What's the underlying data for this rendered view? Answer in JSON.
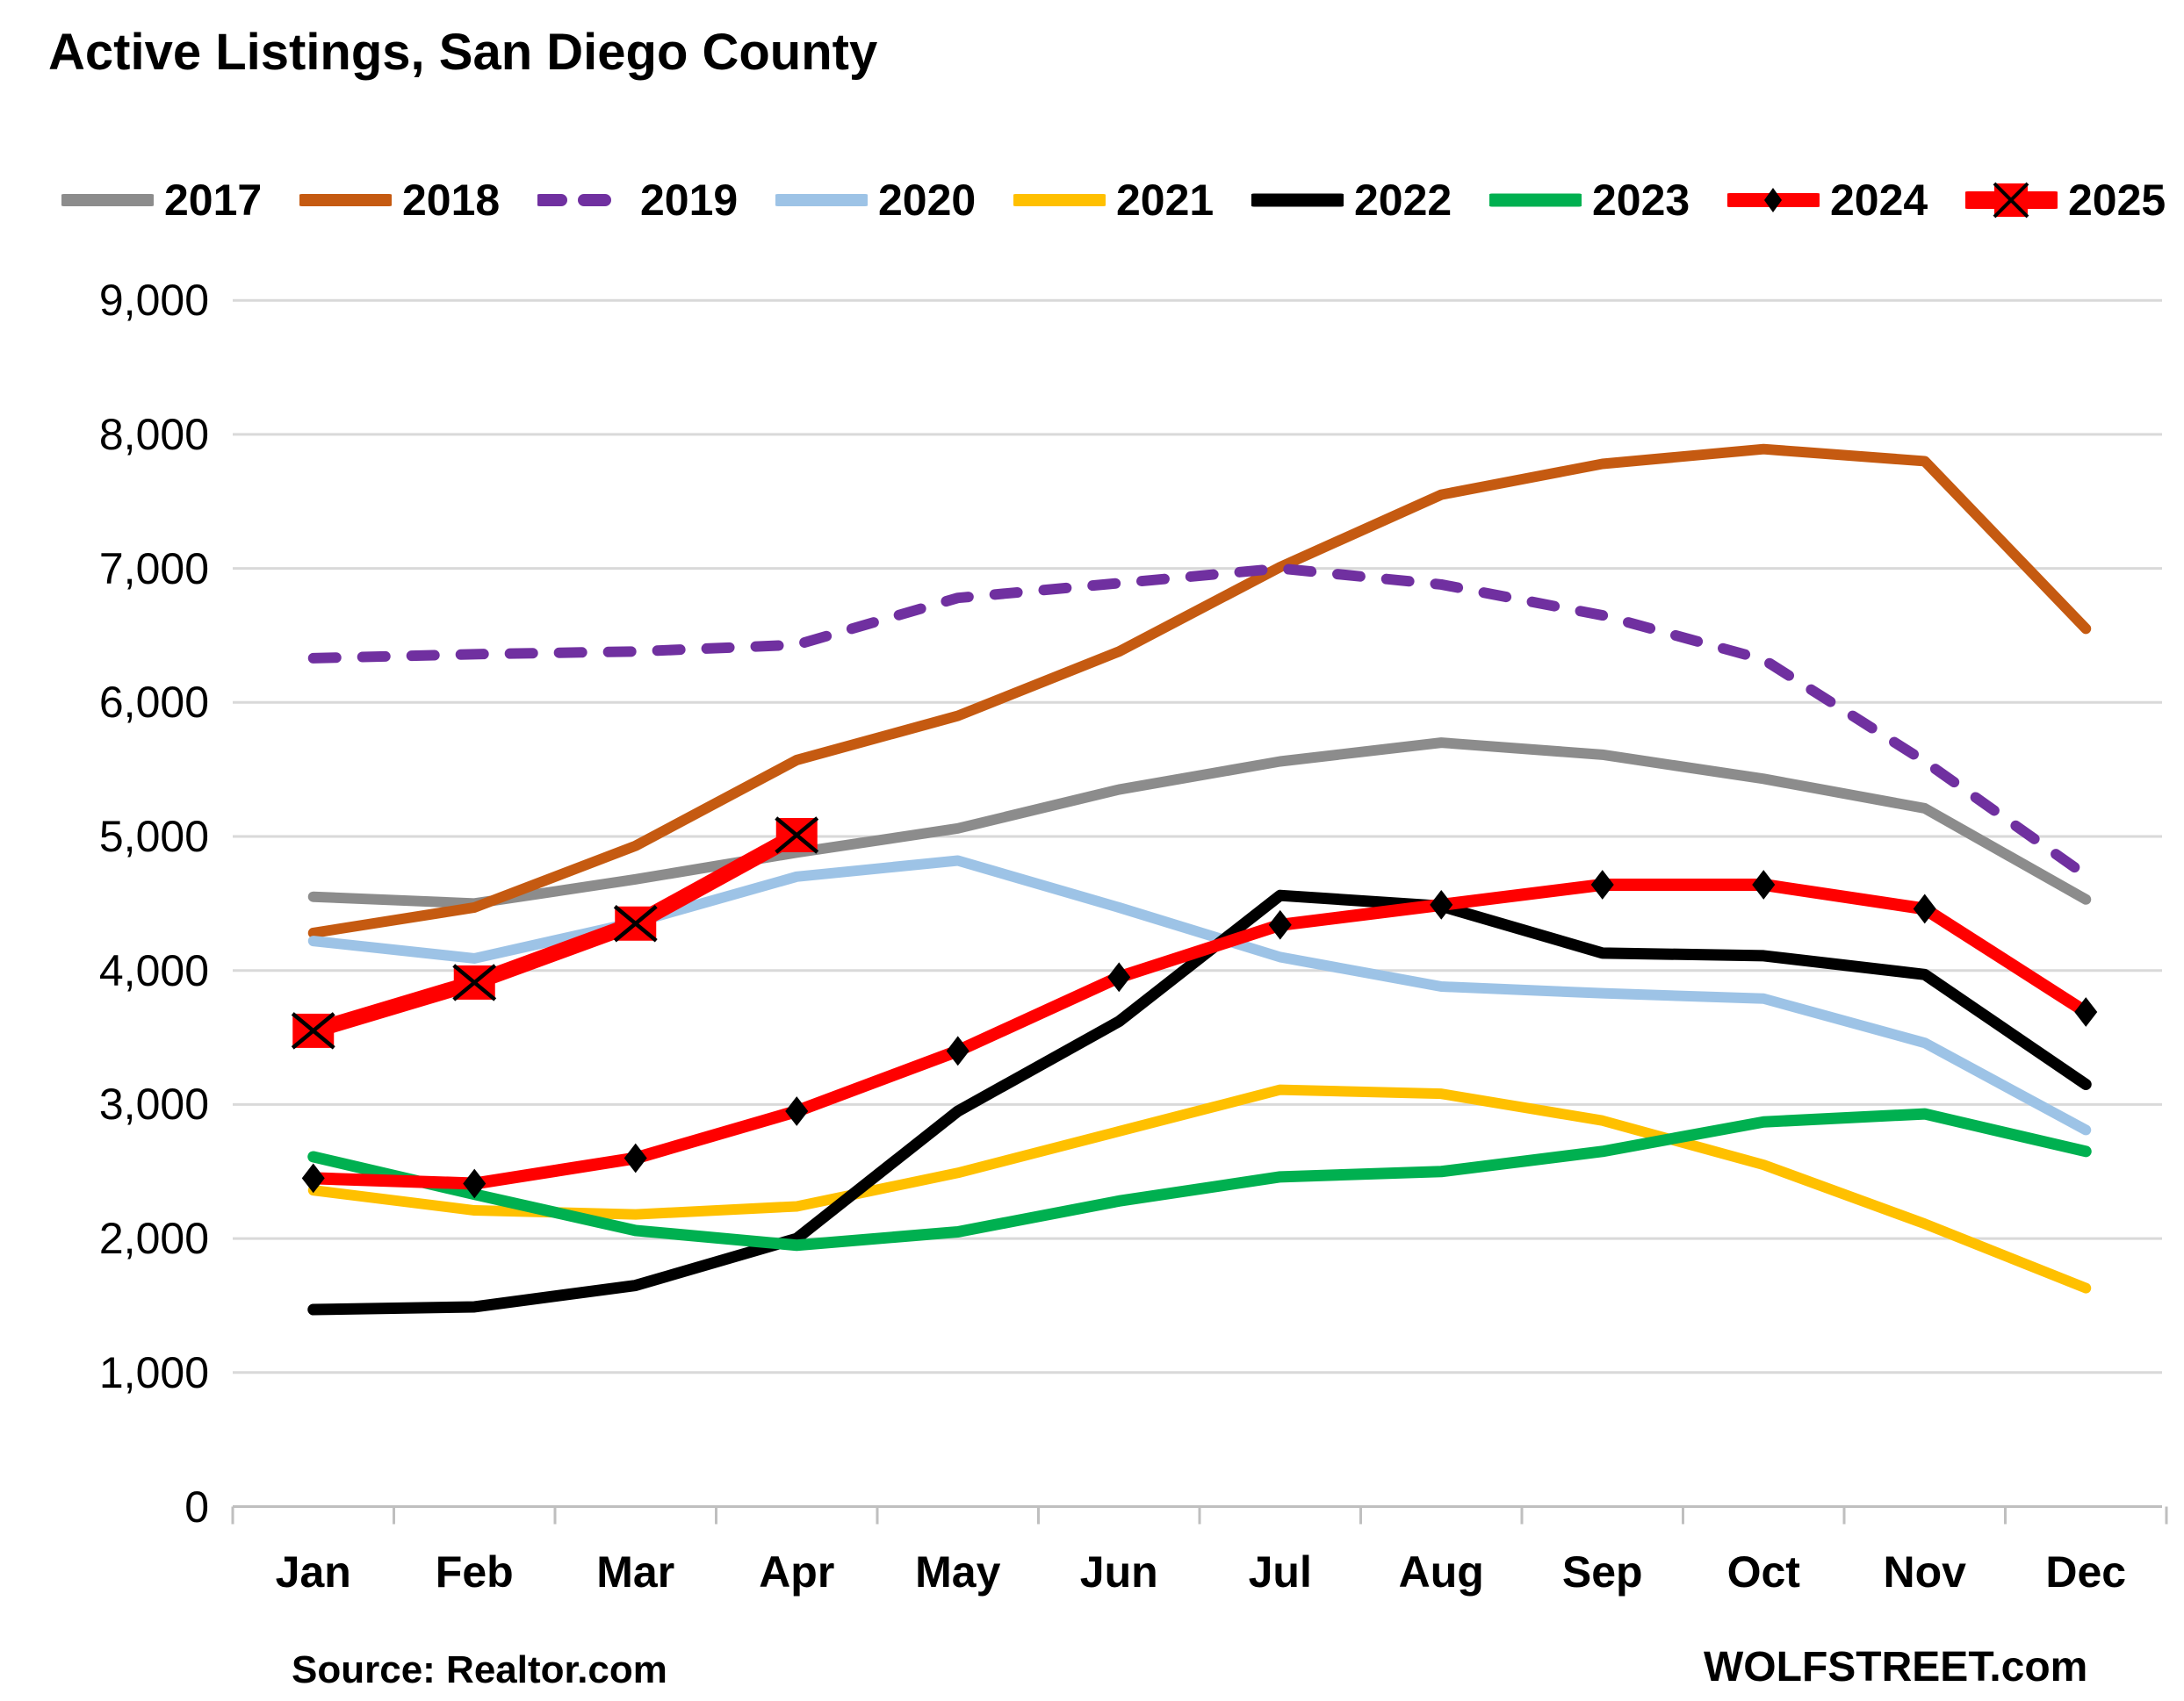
{
  "title": "Active Listings, San Diego County",
  "footer": {
    "source": "Source: Realtor.com",
    "brand": "WOLFSTREET.com"
  },
  "colors": {
    "gridline": "#D9D9D9",
    "axis": "#BFBFBF",
    "text": "#000000",
    "background": "#FFFFFF"
  },
  "chart_data": {
    "type": "line",
    "title": "Active Listings, San Diego County",
    "xlabel": "",
    "ylabel": "",
    "categories": [
      "Jan",
      "Feb",
      "Mar",
      "Apr",
      "May",
      "Jun",
      "Jul",
      "Aug",
      "Sep",
      "Oct",
      "Nov",
      "Dec"
    ],
    "yticks": [
      0,
      1000,
      2000,
      3000,
      4000,
      5000,
      6000,
      7000,
      8000,
      9000
    ],
    "ylim": [
      0,
      9000
    ],
    "grid": "horizontal",
    "legend_position": "top",
    "series": [
      {
        "name": "2017",
        "color": "#8C8C8C",
        "width": 12,
        "dash": false,
        "marker": "none",
        "values": [
          4550,
          4500,
          4680,
          4880,
          5060,
          5350,
          5560,
          5700,
          5610,
          5430,
          5210,
          4530
        ]
      },
      {
        "name": "2018",
        "color": "#C55A11",
        "width": 12,
        "dash": false,
        "marker": "none",
        "values": [
          4280,
          4470,
          4930,
          5570,
          5900,
          6380,
          7010,
          7550,
          7780,
          7890,
          7800,
          6550
        ]
      },
      {
        "name": "2019",
        "color": "#7030A0",
        "width": 12,
        "dash": true,
        "marker": "none",
        "values": [
          6330,
          6360,
          6380,
          6430,
          6780,
          6890,
          7000,
          6880,
          6650,
          6320,
          5560,
          4710
        ]
      },
      {
        "name": "2020",
        "color": "#9DC3E6",
        "width": 12,
        "dash": false,
        "marker": "none",
        "values": [
          4220,
          4090,
          4360,
          4700,
          4820,
          4470,
          4100,
          3880,
          3830,
          3790,
          3460,
          2810
        ]
      },
      {
        "name": "2021",
        "color": "#FFC000",
        "width": 12,
        "dash": false,
        "marker": "none",
        "values": [
          2360,
          2210,
          2180,
          2240,
          2490,
          2800,
          3110,
          3080,
          2880,
          2550,
          2110,
          1630
        ]
      },
      {
        "name": "2022",
        "color": "#000000",
        "width": 13,
        "dash": false,
        "marker": "none",
        "values": [
          1470,
          1490,
          1650,
          2000,
          2950,
          3620,
          4560,
          4480,
          4130,
          4110,
          3970,
          3150
        ]
      },
      {
        "name": "2023",
        "color": "#00B050",
        "width": 13,
        "dash": false,
        "marker": "none",
        "values": [
          2610,
          2330,
          2060,
          1950,
          2050,
          2280,
          2460,
          2500,
          2650,
          2870,
          2930,
          2650
        ]
      },
      {
        "name": "2024",
        "color": "#FF0000",
        "width": 14,
        "dash": false,
        "marker": "diamond",
        "marker_color": "#000000",
        "values": [
          2450,
          2410,
          2600,
          2950,
          3400,
          3950,
          4340,
          4490,
          4640,
          4640,
          4460,
          3690
        ]
      },
      {
        "name": "2025",
        "color": "#FF0000",
        "width": 18,
        "dash": false,
        "marker": "x-square",
        "marker_color": "#FF0000",
        "values": [
          3550,
          3910,
          4350,
          5010
        ]
      }
    ]
  }
}
